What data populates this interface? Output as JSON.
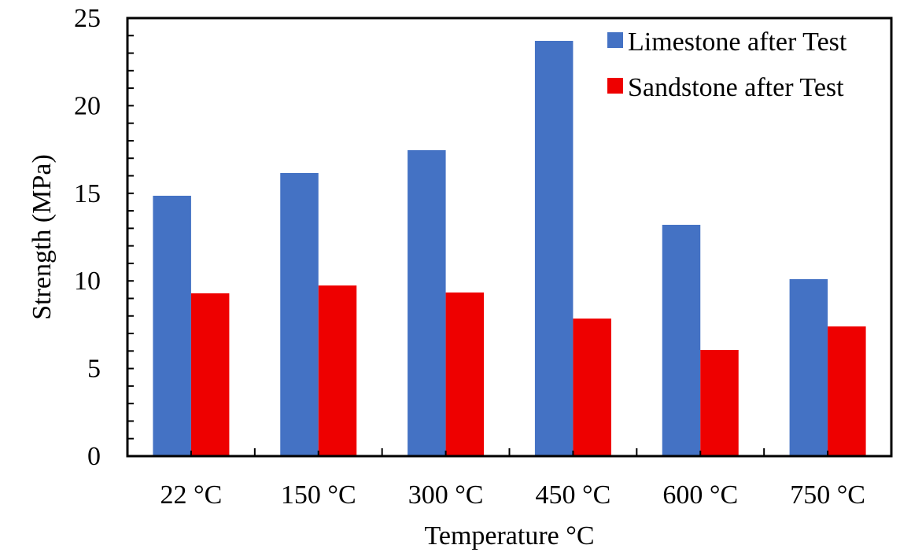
{
  "chart_data": {
    "type": "bar",
    "title": "",
    "xlabel": "Temperature °C",
    "ylabel": "Strength (MPa)",
    "ylim": [
      0,
      25
    ],
    "yticks": [
      0,
      5,
      10,
      15,
      20,
      25
    ],
    "y_minor_step": 1,
    "grid": false,
    "legend_position": "top-right",
    "categories": [
      "22 °C",
      "150 °C",
      "300 °C",
      "450 °C",
      "600 °C",
      "750 °C"
    ],
    "series": [
      {
        "name": "Limestone after Test",
        "color": "#4472C4",
        "values": [
          14.86,
          16.16,
          17.46,
          23.7,
          13.2,
          10.1
        ]
      },
      {
        "name": "Sandstone after Test",
        "color": "#EE0000",
        "values": [
          9.29,
          9.74,
          9.34,
          7.85,
          6.06,
          7.4
        ]
      }
    ]
  }
}
